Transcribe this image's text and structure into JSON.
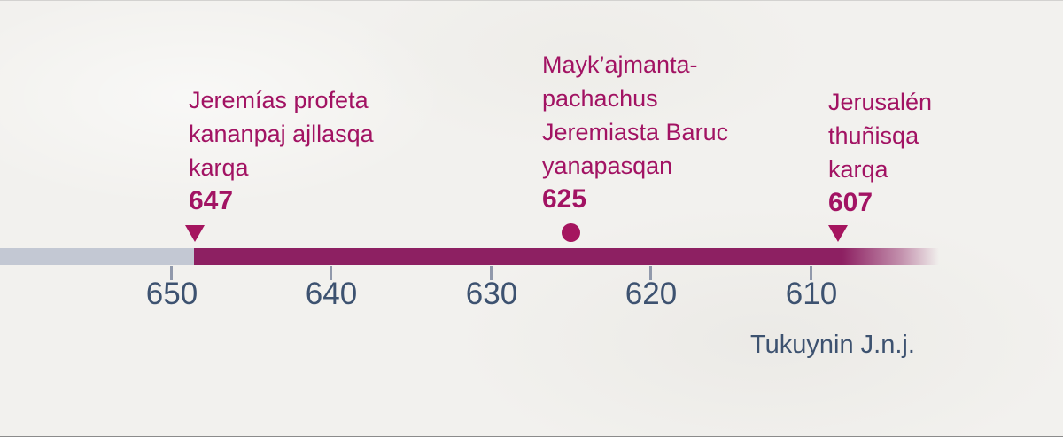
{
  "timeline": {
    "events": [
      {
        "label_lines": [
          "Jeremías profeta",
          "kananpaj ajllasqa",
          "karqa"
        ],
        "year": "647",
        "marker": "triangle-down"
      },
      {
        "label_lines": [
          "Mayk’ajmanta-",
          "pachachus",
          "Jeremiasta Baruc",
          "yanapasqan"
        ],
        "year": "625",
        "marker": "circle"
      },
      {
        "label_lines": [
          "Jerusalén",
          "thuñisqa",
          "karqa"
        ],
        "year": "607",
        "marker": "triangle-down"
      }
    ],
    "axis": {
      "ticks": [
        "650",
        "640",
        "630",
        "620",
        "610"
      ],
      "caption": "Tukuynin J.n.j."
    },
    "colors": {
      "bar_magenta": "#8d2062",
      "bar_pre_gray": "#c3c8d3",
      "event_text_magenta": "#a21363",
      "marker_magenta": "#a5155f",
      "axis_text_blue": "#3d5270",
      "background_paper": "#f2f1ee"
    }
  }
}
